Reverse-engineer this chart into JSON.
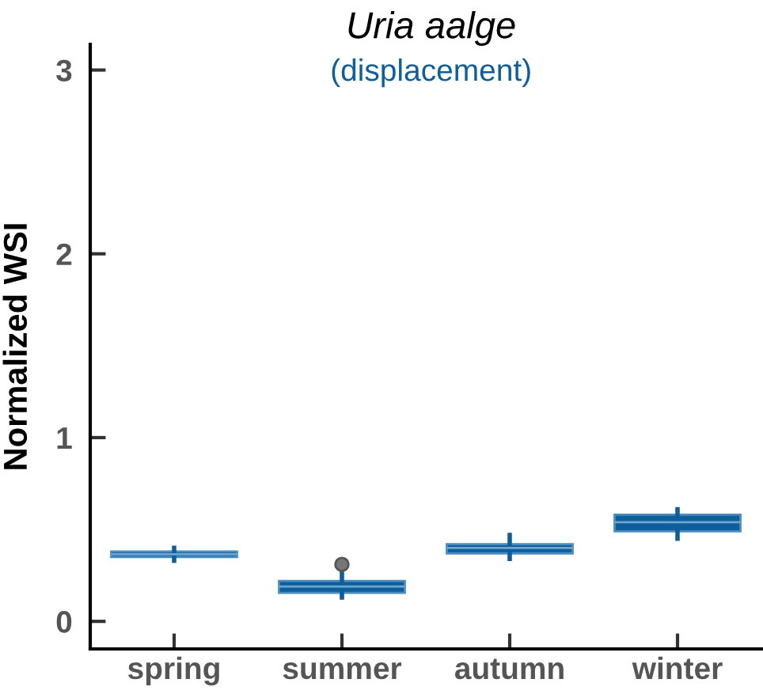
{
  "chart_data": {
    "type": "box",
    "title": "Uria aalge",
    "subtitle": "(displacement)",
    "ylabel": "Normalized WSI",
    "categories": [
      "spring",
      "summer",
      "autumn",
      "winter"
    ],
    "boxes": [
      {
        "low": 0.33,
        "q1": 0.35,
        "median": 0.365,
        "q3": 0.38,
        "high": 0.4
      },
      {
        "low": 0.13,
        "q1": 0.155,
        "median": 0.19,
        "q3": 0.22,
        "high": 0.26,
        "outliers": [
          0.31
        ]
      },
      {
        "low": 0.34,
        "q1": 0.37,
        "median": 0.4,
        "q3": 0.42,
        "high": 0.47
      },
      {
        "low": 0.45,
        "q1": 0.49,
        "median": 0.54,
        "q3": 0.58,
        "high": 0.61
      }
    ],
    "color": "#0d5e9a",
    "ylim": [
      -0.15,
      3.14
    ],
    "yticks": [
      0,
      1,
      2,
      3
    ],
    "grid": false,
    "legend": false
  }
}
